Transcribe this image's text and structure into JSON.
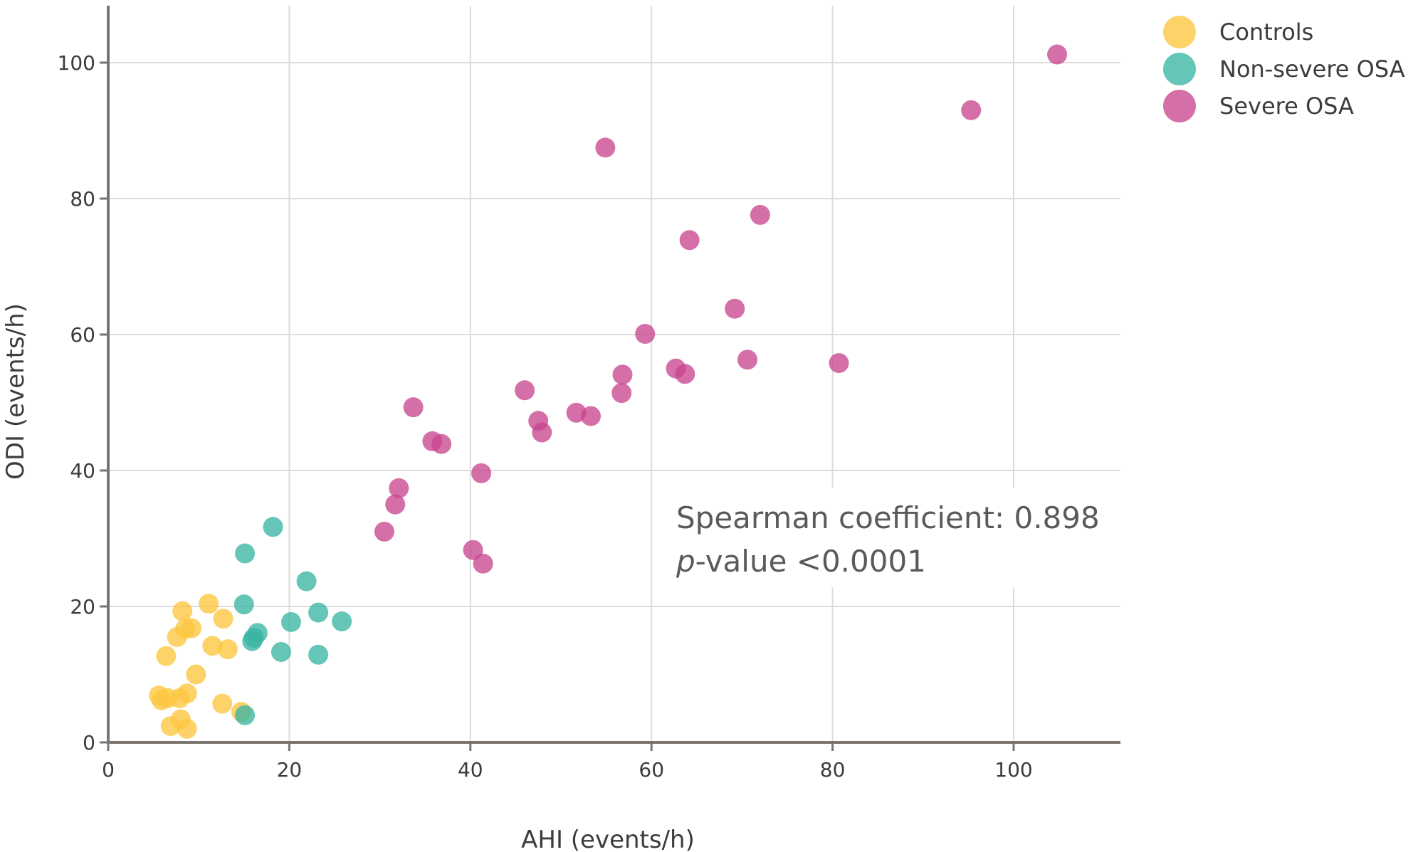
{
  "chart_data": {
    "type": "scatter",
    "xlabel": "AHI (events/h)",
    "ylabel": "ODI (events/h)",
    "xlim": [
      0,
      112
    ],
    "ylim": [
      -1.5,
      108
    ],
    "xticks": [
      0,
      20,
      40,
      60,
      80,
      100
    ],
    "yticks": [
      0,
      20,
      40,
      60,
      80,
      100
    ],
    "grid": true,
    "legend_position": "top-right",
    "annotation": {
      "line1": "Spearman coefficient: 0.898",
      "line2_italic": "p",
      "line2_rest": "-value <0.0001"
    },
    "series": [
      {
        "name": "Controls",
        "color": "#fdc73f",
        "points": [
          [
            5.6,
            6.9
          ],
          [
            5.9,
            6.2
          ],
          [
            6.4,
            12.7
          ],
          [
            6.6,
            6.5
          ],
          [
            6.9,
            2.4
          ],
          [
            7.6,
            15.5
          ],
          [
            7.9,
            6.5
          ],
          [
            8.0,
            3.4
          ],
          [
            8.2,
            19.3
          ],
          [
            8.5,
            16.7
          ],
          [
            8.7,
            2.0
          ],
          [
            8.7,
            7.2
          ],
          [
            9.2,
            16.8
          ],
          [
            9.7,
            10.0
          ],
          [
            11.1,
            20.4
          ],
          [
            11.5,
            14.2
          ],
          [
            12.6,
            5.7
          ],
          [
            12.7,
            18.2
          ],
          [
            13.2,
            13.7
          ],
          [
            14.7,
            4.5
          ]
        ]
      },
      {
        "name": "Non-severe OSA",
        "color": "#3ab5a1",
        "points": [
          [
            15.0,
            20.3
          ],
          [
            15.1,
            27.8
          ],
          [
            15.1,
            4.0
          ],
          [
            15.9,
            14.9
          ],
          [
            16.1,
            15.4
          ],
          [
            16.5,
            16.1
          ],
          [
            18.2,
            31.7
          ],
          [
            19.1,
            13.3
          ],
          [
            20.2,
            17.7
          ],
          [
            21.9,
            23.7
          ],
          [
            23.2,
            19.1
          ],
          [
            23.2,
            12.9
          ],
          [
            25.8,
            17.8
          ]
        ]
      },
      {
        "name": "Severe OSA",
        "color": "#c94690",
        "points": [
          [
            30.5,
            31.0
          ],
          [
            31.7,
            35.0
          ],
          [
            32.1,
            37.4
          ],
          [
            33.7,
            49.3
          ],
          [
            35.8,
            44.3
          ],
          [
            36.8,
            43.9
          ],
          [
            40.3,
            28.3
          ],
          [
            41.2,
            39.6
          ],
          [
            41.4,
            26.3
          ],
          [
            46.0,
            51.8
          ],
          [
            47.5,
            47.3
          ],
          [
            47.9,
            45.6
          ],
          [
            51.7,
            48.5
          ],
          [
            53.3,
            48.0
          ],
          [
            54.9,
            87.5
          ],
          [
            56.7,
            51.4
          ],
          [
            56.8,
            54.1
          ],
          [
            59.3,
            60.1
          ],
          [
            62.7,
            55.0
          ],
          [
            63.7,
            54.2
          ],
          [
            64.2,
            73.9
          ],
          [
            69.2,
            63.8
          ],
          [
            70.6,
            56.3
          ],
          [
            72.0,
            77.6
          ],
          [
            80.7,
            55.8
          ],
          [
            95.3,
            93.0
          ],
          [
            104.8,
            101.2
          ]
        ]
      }
    ]
  }
}
